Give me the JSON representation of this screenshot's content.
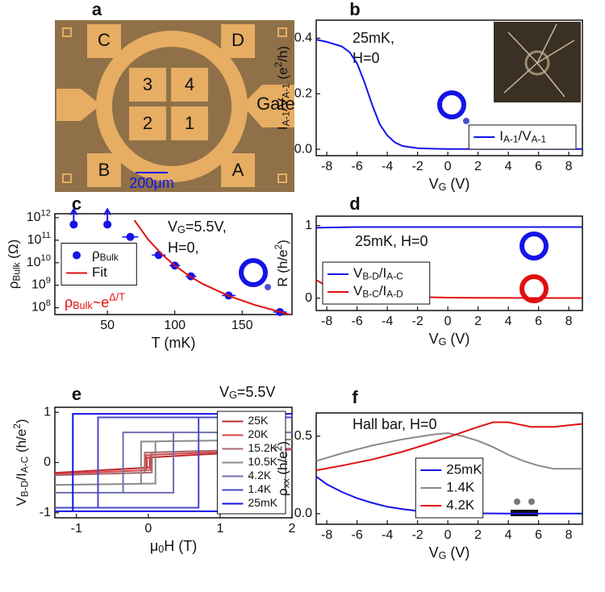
{
  "micrograph": {
    "label": "a",
    "pads": [
      "C",
      "D",
      "B",
      "A"
    ],
    "inner": [
      "3",
      "4",
      "2",
      "1"
    ],
    "gate": "Gate",
    "scale_bar": "200μm"
  },
  "chart_data": [
    {
      "type": "line",
      "label": "b",
      "xlabel": "V_{G} (V)",
      "ylabel": "I_{A-1}/V_{A-1} (e^{2}/h)",
      "annotations": [
        "25mK,",
        "H=0"
      ],
      "xlim": [
        -8.7,
        8.9
      ],
      "xticks": [
        -8,
        -6,
        -4,
        -2,
        0,
        2,
        4,
        6,
        8
      ],
      "ylim": [
        -0.023,
        0.465
      ],
      "yticks": [
        {
          "value": 0,
          "label": "0.0"
        },
        {
          "value": 0.2,
          "label": "0.2"
        },
        {
          "value": 0.4,
          "label": "0.4"
        }
      ],
      "legend": "lower right",
      "series": [
        {
          "name": "I_{A-1}/V_{A-1}",
          "color": "#1414e6",
          "x": [
            -8.7,
            -8,
            -7,
            -6.5,
            -6,
            -5.5,
            -5,
            -4.5,
            -4,
            -3.5,
            -3,
            -2,
            -1,
            0,
            2,
            4,
            6,
            8,
            8.9
          ],
          "values": [
            0.395,
            0.387,
            0.37,
            0.35,
            0.31,
            0.24,
            0.16,
            0.09,
            0.05,
            0.025,
            0.012,
            0.004,
            0.002,
            0.001,
            0.001,
            0.001,
            0.001,
            0.001,
            0.001
          ]
        }
      ]
    },
    {
      "type": "scatter",
      "label": "c",
      "xlabel": "T (mK)",
      "ylabel": "ρ_{Bulk} (Ω)",
      "annotations": [
        "V_{G}=5.5V,",
        "H=0,",
        {
          "text": "ρ_{Bulk}~e^{Δ/T}",
          "color": "#e01010"
        }
      ],
      "xlim": [
        11,
        187
      ],
      "xticks": [
        50,
        100,
        150
      ],
      "ylog": true,
      "ylim": [
        50000000,
        1500000000000
      ],
      "yticks": [
        {
          "value": 100000000,
          "label": "10^{8}"
        },
        {
          "value": 1000000000,
          "label": "10^{9}"
        },
        {
          "value": 10000000000,
          "label": "10^{10}"
        },
        {
          "value": 100000000000,
          "label": "10^{11}"
        },
        {
          "value": 1000000000000,
          "label": "10^{12}"
        }
      ],
      "legend": "center left",
      "series": [
        {
          "name": "ρ_{Bulk}",
          "color": "#1414e6",
          "x": [
            25,
            50,
            67,
            88,
            100,
            112,
            140,
            178
          ],
          "values": [
            500000000000,
            500000000000,
            140000000000,
            22000000000,
            7500000000,
            2500000000,
            350000000,
            65000000
          ],
          "xerr": [
            null,
            null,
            6,
            5,
            4,
            4,
            5,
            5
          ],
          "arrow_up": [
            true,
            true,
            false,
            false,
            false,
            false,
            false,
            false
          ]
        },
        {
          "name": "Fit",
          "type": "line",
          "color": "#e01010",
          "x": [
            70,
            80,
            90,
            100,
            110,
            120,
            140,
            160,
            185
          ],
          "values": [
            770000000000,
            112000000000,
            25000000000,
            7500000000,
            2800000000,
            1200000000,
            340000000,
            130000000,
            51000000
          ]
        }
      ]
    },
    {
      "type": "line",
      "label": "d",
      "xlabel": "V_{G} (V)",
      "ylabel": "R (h/e^{2})",
      "annotations": [
        "25mK, H=0"
      ],
      "xlim": [
        -8.7,
        8.9
      ],
      "xticks": [
        -8,
        -6,
        -4,
        -2,
        0,
        2,
        4,
        6,
        8
      ],
      "ylim": [
        -0.17,
        1.13
      ],
      "yticks": [
        0,
        1
      ],
      "legend": "lower left",
      "series": [
        {
          "name": "V_{B-D}/I_{A-C}",
          "color": "#1414e6",
          "x": [
            -8.7,
            -6,
            -3,
            0,
            3,
            6,
            8.9
          ],
          "values": [
            0.97,
            0.98,
            0.98,
            0.98,
            0.98,
            0.98,
            0.98
          ]
        },
        {
          "name": "V_{B-C}/I_{A-D}",
          "color": "#e01010",
          "x": [
            -8.7,
            -8,
            -7,
            -6,
            -5,
            -4,
            -3,
            -2,
            -1,
            0,
            2,
            4,
            6,
            8.9
          ],
          "values": [
            0.25,
            0.17,
            0.12,
            0.085,
            0.06,
            0.045,
            0.03,
            0.02,
            0.012,
            0.008,
            0.004,
            0.003,
            0.002,
            0.002
          ]
        }
      ]
    },
    {
      "type": "line",
      "label": "e",
      "xlabel": "μ_{0}H (T)",
      "ylabel": "V_{B-D}/I_{A-C} (h/e^{2})",
      "annotations": [
        "V_{G}=5.5V"
      ],
      "xlim": [
        -1.3,
        2.0
      ],
      "xticks": [
        -1,
        0,
        1,
        2
      ],
      "ylim": [
        -1.1,
        1.1
      ],
      "yticks": [
        -1,
        0,
        1
      ],
      "legend": "center right",
      "series": [
        {
          "name": "25K",
          "color": "#c0282d",
          "x": [
            -1.3,
            0.02,
            0.02,
            2.0,
            -0.02,
            -0.02,
            -1.3
          ],
          "values": [
            -0.204,
            -0.098,
            0.1016,
            0.26,
            0.098,
            -0.102,
            -0.204
          ]
        },
        {
          "name": "20K",
          "color": "#d84848",
          "x": [
            -1.3,
            0.03,
            0.03,
            2.0,
            -0.03,
            -0.03,
            -1.3
          ],
          "values": [
            -0.228,
            -0.148,
            0.152,
            0.27,
            0.148,
            -0.152,
            -0.228
          ]
        },
        {
          "name": "15.2K",
          "color": "#a86a70",
          "x": [
            -1.3,
            0.05,
            0.05,
            2.0,
            -0.05,
            -0.05,
            -1.3
          ],
          "values": [
            -0.252,
            -0.198,
            0.202,
            0.28,
            0.198,
            -0.202,
            -0.252
          ]
        },
        {
          "name": "10.5K",
          "color": "#8a8a8a",
          "x": [
            -1.3,
            0.1,
            0.1,
            2.0,
            -0.1,
            -0.1,
            -1.3
          ],
          "values": [
            -0.446,
            -0.418,
            0.422,
            0.46,
            0.418,
            -0.422,
            -0.446
          ]
        },
        {
          "name": "4.2K",
          "color": "#7070b0",
          "x": [
            -1.3,
            0.35,
            0.35,
            2.0,
            -0.35,
            -0.35,
            -1.3
          ],
          "values": [
            -0.6,
            -0.6,
            0.6,
            0.6,
            0.6,
            -0.6,
            -0.6
          ]
        },
        {
          "name": "1.4K",
          "color": "#4848c8",
          "x": [
            -1.3,
            0.7,
            0.7,
            2.0,
            -0.7,
            -0.7,
            -1.3
          ],
          "values": [
            -0.9,
            -0.9,
            0.9,
            0.9,
            0.9,
            -0.9,
            -0.9
          ]
        },
        {
          "name": "25mK",
          "color": "#1414e6",
          "x": [
            -1.3,
            1.05,
            1.05,
            2.0,
            -1.05,
            -1.05,
            -1.3
          ],
          "values": [
            -0.97,
            -0.97,
            0.97,
            0.97,
            0.97,
            -0.97,
            -0.97
          ]
        }
      ]
    },
    {
      "type": "line",
      "label": "f",
      "xlabel": "V_{G} (V)",
      "ylabel": "ρ_{xx} (h/e^{2})",
      "annotations": [
        "Hall bar, H=0"
      ],
      "xlim": [
        -8.7,
        8.9
      ],
      "xticks": [
        -8,
        -6,
        -4,
        -2,
        0,
        2,
        4,
        6,
        8
      ],
      "ylim": [
        -0.068,
        0.65
      ],
      "yticks": [
        {
          "value": 0,
          "label": "0.0"
        },
        {
          "value": 0.5,
          "label": "0.5"
        }
      ],
      "legend": "lower center",
      "series": [
        {
          "name": "25mK",
          "color": "#1414e6",
          "x": [
            -8.7,
            -8,
            -7,
            -6,
            -5,
            -4,
            -3,
            -2,
            -1,
            0,
            2,
            4,
            6,
            8.9
          ],
          "values": [
            0.24,
            0.19,
            0.14,
            0.1,
            0.07,
            0.045,
            0.03,
            0.018,
            0.01,
            0.005,
            0.002,
            0.001,
            0.001,
            0.001
          ]
        },
        {
          "name": "1.4K",
          "color": "#8a8a8a",
          "x": [
            -8.7,
            -7,
            -5,
            -3,
            -1,
            0,
            1,
            2,
            3,
            4,
            5,
            6,
            7,
            8.9
          ],
          "values": [
            0.34,
            0.39,
            0.44,
            0.48,
            0.51,
            0.52,
            0.5,
            0.47,
            0.43,
            0.38,
            0.34,
            0.31,
            0.29,
            0.29
          ]
        },
        {
          "name": "4.2K",
          "color": "#e01010",
          "x": [
            -8.7,
            -7,
            -5,
            -3,
            -1,
            0.5,
            2,
            3,
            4,
            5.5,
            7,
            8.9
          ],
          "values": [
            0.28,
            0.31,
            0.35,
            0.4,
            0.46,
            0.51,
            0.56,
            0.59,
            0.59,
            0.56,
            0.56,
            0.58
          ]
        }
      ]
    }
  ]
}
